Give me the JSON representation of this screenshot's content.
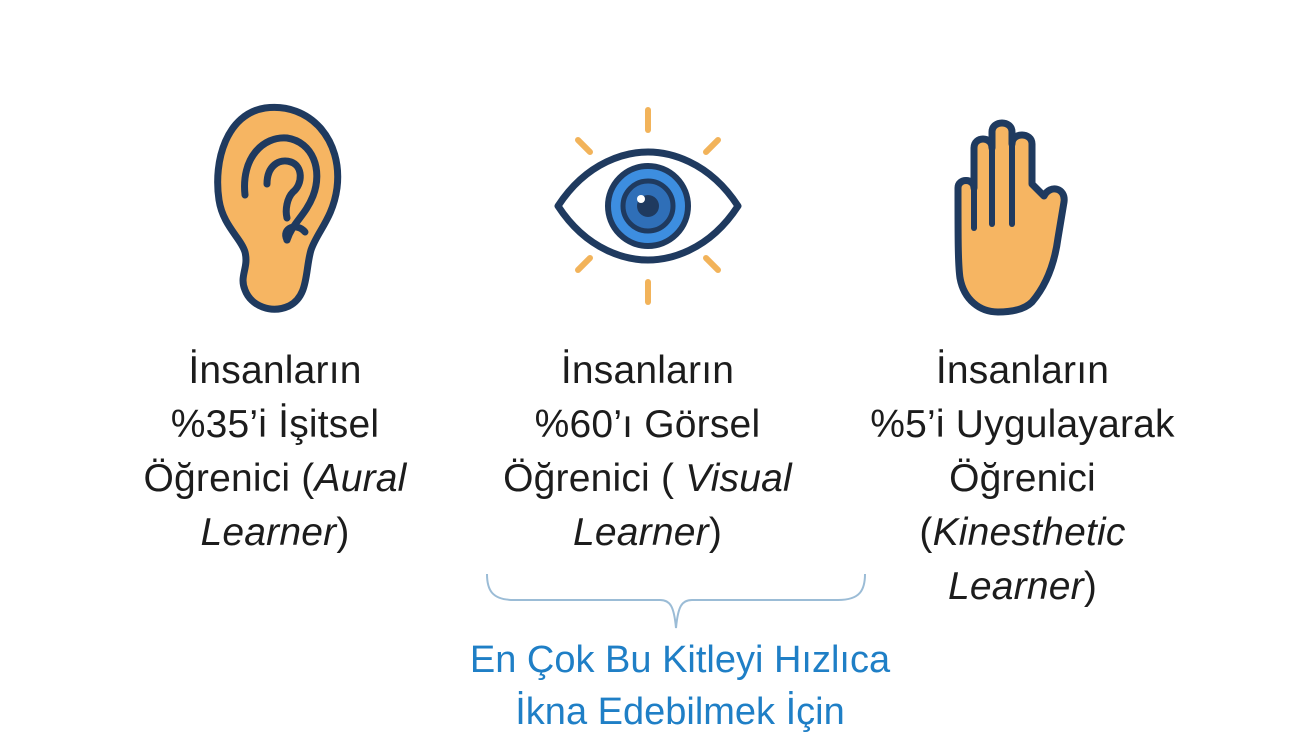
{
  "colors": {
    "stroke": "#1f3a5f",
    "ear_fill": "#f6b562",
    "eye_iris": "#3d8ee0",
    "eye_iris_inner": "#2f6fb8",
    "rays": "#f2b35a",
    "hand_fill": "#f6b562",
    "note": "#1f7fc6",
    "bracket": "#9bbcd6"
  },
  "aural": {
    "icon": "ear-icon",
    "line1": "İnsanların",
    "line2": "%35’i İşitsel",
    "line3_prefix": "Öğrenici (",
    "line3_italic": "Aural",
    "line4_italic": "Learner",
    "line4_suffix": ")"
  },
  "visual": {
    "icon": "eye-icon",
    "line1": "İnsanların",
    "line2": "%60’ı Görsel",
    "line3_prefix": "Öğrenici ( ",
    "line3_italic": "Visual",
    "line4_italic": "Learner",
    "line4_suffix": ")"
  },
  "kinesthetic": {
    "icon": "hand-icon",
    "line1": "İnsanların",
    "line2": "%5’i Uygulayarak",
    "line3": "Öğrenici",
    "line4_prefix": "(",
    "line4_italic": "Kinesthetic",
    "line5_italic": "Learner",
    "line5_suffix": ")"
  },
  "note": {
    "line1": "En Çok Bu Kitleyi Hızlıca",
    "line2": "İkna Edebilmek İçin"
  }
}
